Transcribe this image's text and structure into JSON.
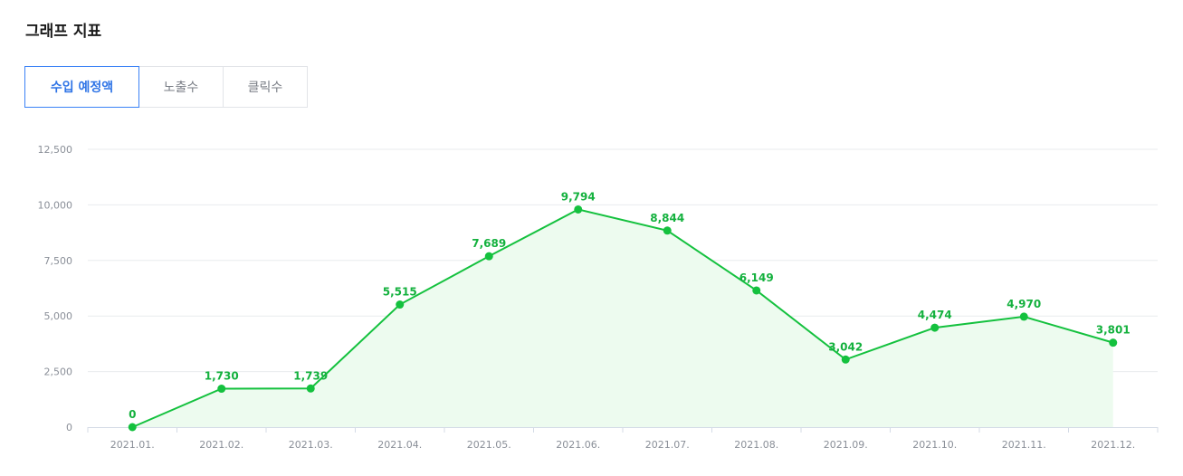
{
  "header": {
    "title": "그래프 지표"
  },
  "tabs": [
    {
      "label": "수입 예정액",
      "active": true
    },
    {
      "label": "노출수",
      "active": false
    },
    {
      "label": "클릭수",
      "active": false
    }
  ],
  "colors": {
    "line": "#14c13e",
    "fill": "#edfbef",
    "accent": "#3b82f6",
    "grid": "#e9ebee"
  },
  "chart_data": {
    "type": "area",
    "title": "",
    "xlabel": "",
    "ylabel": "",
    "categories": [
      "2021.01.",
      "2021.02.",
      "2021.03.",
      "2021.04.",
      "2021.05.",
      "2021.06.",
      "2021.07.",
      "2021.08.",
      "2021.09.",
      "2021.10.",
      "2021.11.",
      "2021.12."
    ],
    "values": [
      0,
      1730,
      1739,
      5515,
      7689,
      9794,
      8844,
      6149,
      3042,
      4474,
      4970,
      3801
    ],
    "value_labels": [
      "0",
      "1,730",
      "1,739",
      "5,515",
      "7,689",
      "9,794",
      "8,844",
      "6,149",
      "3,042",
      "4,474",
      "4,970",
      "3,801"
    ],
    "yticks": [
      0,
      2500,
      5000,
      7500,
      10000,
      12500
    ],
    "ytick_labels": [
      "0",
      "2,500",
      "5,000",
      "7,500",
      "10,000",
      "12,500"
    ],
    "ylim": [
      0,
      12500
    ],
    "grid": true,
    "legend": "none"
  }
}
